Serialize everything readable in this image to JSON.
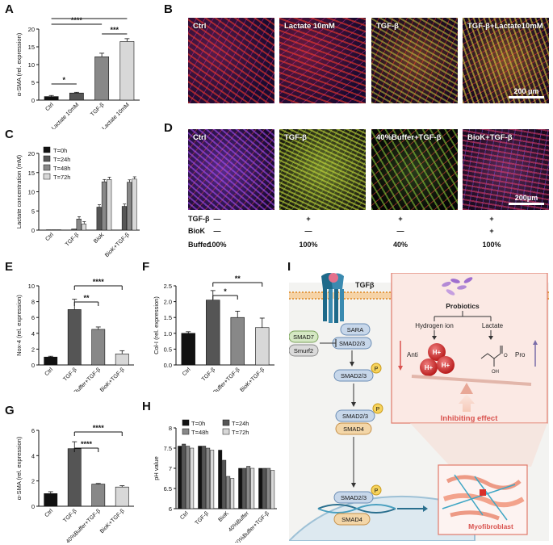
{
  "panels": {
    "A": "A",
    "B": "B",
    "C": "C",
    "D": "D",
    "E": "E",
    "F": "F",
    "G": "G",
    "H": "H",
    "I": "I"
  },
  "sig": {
    "s1": "*",
    "s2": "**",
    "s3": "***",
    "s4": "****"
  },
  "chart_data": [
    {
      "panel": "A",
      "type": "bar",
      "categories": [
        "Ctrl",
        "Lactate 10mM",
        "TGF-β",
        "TGF-β+Lactate 10mM"
      ],
      "values": [
        1.0,
        2.0,
        12.2,
        16.5
      ],
      "errors": [
        0.3,
        0.2,
        1.0,
        0.8
      ],
      "ylabel": "α-SMA (rel. expression)",
      "ylim": [
        0,
        20
      ],
      "yticks": [
        0,
        5,
        10,
        15,
        20
      ],
      "colors": [
        "#111111",
        "#555555",
        "#888888",
        "#d8d8d8"
      ]
    },
    {
      "panel": "C",
      "type": "bar",
      "categories": [
        "Ctrl",
        "TGF-β",
        "BioK",
        "BioK+TGF-β"
      ],
      "series": [
        {
          "name": "T=0h",
          "values": [
            0.05,
            0.05,
            0.05,
            0.05
          ]
        },
        {
          "name": "T=24h",
          "values": [
            0.1,
            0.3,
            6.0,
            6.2
          ]
        },
        {
          "name": "T=48h",
          "values": [
            0.1,
            2.9,
            12.6,
            12.5
          ]
        },
        {
          "name": "T=72h",
          "values": [
            0.1,
            1.6,
            13.2,
            13.3
          ]
        }
      ],
      "ylabel": "Lactate concentration (mM)",
      "ylim": [
        0,
        20
      ],
      "yticks": [
        0,
        5,
        10,
        15,
        20
      ],
      "colors": [
        "#111111",
        "#555555",
        "#888888",
        "#d8d8d8"
      ]
    },
    {
      "panel": "E",
      "type": "bar",
      "categories": [
        "Ctrl",
        "TGF-β",
        "40%Buffer+TGF-β",
        "BioK+TGF-β"
      ],
      "values": [
        1.0,
        7.0,
        4.5,
        1.4
      ],
      "errors": [
        0.1,
        1.3,
        0.3,
        0.4
      ],
      "ylabel": "Nox-4 (rel. expression)",
      "ylim": [
        0,
        10
      ],
      "yticks": [
        0,
        2,
        4,
        6,
        8,
        10
      ],
      "colors": [
        "#111111",
        "#555555",
        "#888888",
        "#d8d8d8"
      ]
    },
    {
      "panel": "F",
      "type": "bar",
      "categories": [
        "Ctrl",
        "TGF-β",
        "40%Buffer+TGF-β",
        "BioK+TGF-β"
      ],
      "values": [
        1.0,
        2.05,
        1.5,
        1.18
      ],
      "errors": [
        0.05,
        0.3,
        0.2,
        0.3
      ],
      "ylabel": "Col-I (rel. expression)",
      "ylim": [
        0,
        2.5
      ],
      "yticks": [
        0.0,
        0.5,
        1.0,
        1.5,
        2.0,
        2.5
      ],
      "colors": [
        "#111111",
        "#555555",
        "#888888",
        "#d8d8d8"
      ]
    },
    {
      "panel": "G",
      "type": "bar",
      "categories": [
        "Ctrl",
        "TGF-β",
        "40%Buffer+TGF-β",
        "BioK+TGF-β"
      ],
      "values": [
        1.0,
        4.55,
        1.75,
        1.52
      ],
      "errors": [
        0.15,
        0.55,
        0.05,
        0.1
      ],
      "ylabel": "α-SMA (rel. expression)",
      "ylim": [
        0,
        6
      ],
      "yticks": [
        0,
        2,
        4,
        6
      ],
      "colors": [
        "#111111",
        "#555555",
        "#888888",
        "#d8d8d8"
      ]
    },
    {
      "panel": "H",
      "type": "bar",
      "categories": [
        "Ctrl",
        "TGF-β",
        "BioK",
        "40%Buffer",
        "40%Buffer+TGF-β"
      ],
      "series": [
        {
          "name": "T=0h",
          "values": [
            7.55,
            7.55,
            7.45,
            7.0,
            7.0
          ]
        },
        {
          "name": "T=24h",
          "values": [
            7.6,
            7.55,
            7.2,
            7.0,
            7.0
          ]
        },
        {
          "name": "T=48h",
          "values": [
            7.55,
            7.5,
            6.8,
            7.05,
            7.0
          ]
        },
        {
          "name": "T=72h",
          "values": [
            7.5,
            7.45,
            6.75,
            7.0,
            6.95
          ]
        }
      ],
      "ylabel": "pH value",
      "ylim": [
        6.0,
        8.0
      ],
      "yticks": [
        6.0,
        6.5,
        7.0,
        7.5,
        8.0
      ],
      "colors": [
        "#111111",
        "#555555",
        "#888888",
        "#d8d8d8"
      ]
    }
  ],
  "microscopy_B": {
    "labels": [
      "Ctrl",
      "Lactate 10mM",
      "TGF-β",
      "TGF-β+Lactate10mM"
    ],
    "scale": "200 μm"
  },
  "microscopy_D": {
    "labels": [
      "Ctrl",
      "TGF-β",
      "40%Buffer+TGF-β",
      "BioK+TGF-β"
    ],
    "scale": "200μm"
  },
  "conditions_D": {
    "rows": [
      {
        "label": "TGF-β",
        "cells": [
          "—",
          "+",
          "+",
          "+"
        ]
      },
      {
        "label": "BioK",
        "cells": [
          "—",
          "—",
          "—",
          "+"
        ]
      },
      {
        "label": "Buffer",
        "cells": [
          "100%",
          "100%",
          "40%",
          "100%"
        ]
      }
    ]
  },
  "schematic": {
    "tgfb": "TGFβ",
    "sara": "SARA",
    "smad23": "SMAD2/3",
    "smad7": "SMAD7",
    "smurf2": "Smurf2",
    "smad4": "SMAD4",
    "p": "P",
    "probiotics": "Probiotics",
    "hydrogen": "Hydrogen ion",
    "lactate": "Lactate",
    "anti": "Anti",
    "pro": "Pro",
    "hplus": "H+",
    "oh": "OH",
    "ominus": "O",
    "inhibiting": "Inhibiting effect",
    "myofibroblast": "Myofibroblast"
  }
}
